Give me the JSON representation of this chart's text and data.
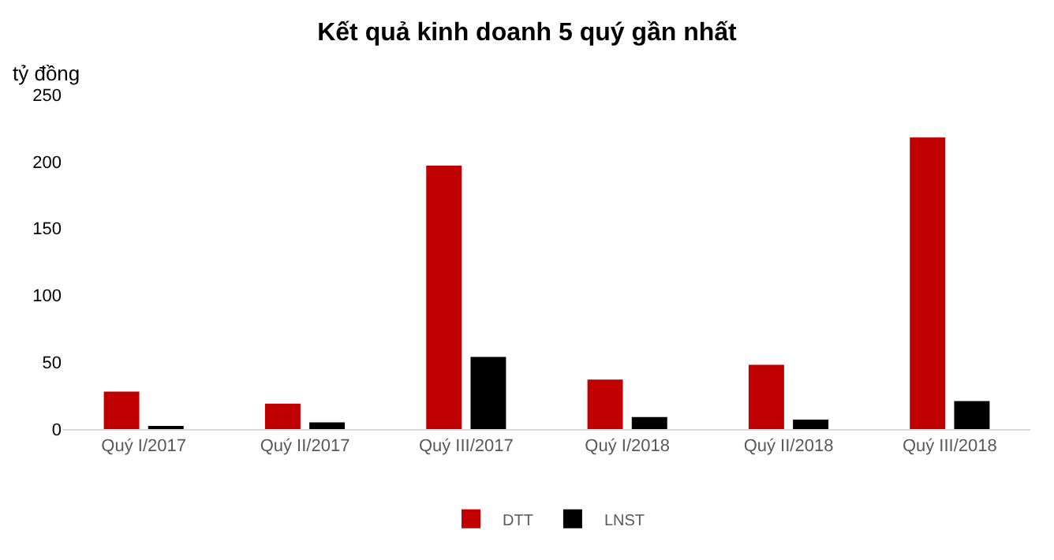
{
  "chart_data": {
    "type": "bar",
    "title": "Kết quả kinh doanh 5 quý gần nhất",
    "ylabel": "tỷ đồng",
    "categories": [
      "Quý I/2017",
      "Quý II/2017",
      "Quý III/2017",
      "Quý I/2018",
      "Quý II/2018",
      "Quý III/2018"
    ],
    "series": [
      {
        "name": "DTT",
        "color": "#c00000",
        "values": [
          28,
          19,
          197,
          37,
          48,
          218
        ]
      },
      {
        "name": "LNST",
        "color": "#000000",
        "values": [
          2,
          5,
          54,
          9,
          7,
          21
        ]
      }
    ],
    "ylim": [
      0,
      250
    ],
    "yticks": [
      0,
      50,
      100,
      150,
      200,
      250
    ],
    "grid": false,
    "legend": "bottom"
  }
}
